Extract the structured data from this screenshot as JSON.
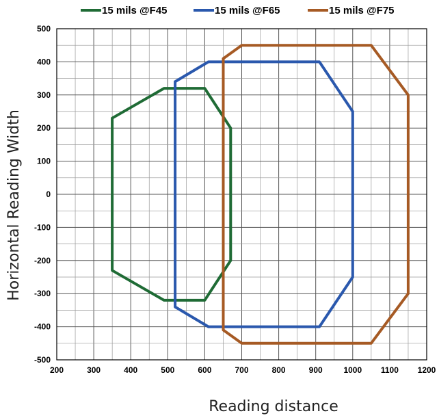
{
  "chart_data": {
    "type": "line",
    "title": "",
    "xlabel": "Reading distance",
    "ylabel": "Horizontal Reading Width",
    "xlim": [
      200,
      1200
    ],
    "ylim": [
      -500,
      500
    ],
    "x_ticks": [
      200,
      300,
      400,
      500,
      600,
      700,
      800,
      900,
      1000,
      1100,
      1200
    ],
    "y_ticks": [
      500,
      400,
      300,
      200,
      100,
      0,
      -100,
      -200,
      -300,
      -400,
      -500
    ],
    "grid": true,
    "legend_position": "top",
    "series": [
      {
        "name": "15 mils @F45",
        "color": "#1f6b35",
        "points": [
          [
            350,
            230
          ],
          [
            490,
            320
          ],
          [
            600,
            320
          ],
          [
            670,
            200
          ],
          [
            670,
            -200
          ],
          [
            600,
            -320
          ],
          [
            490,
            -320
          ],
          [
            350,
            -230
          ],
          [
            350,
            230
          ]
        ]
      },
      {
        "name": "15 mils @F65",
        "color": "#2a58ad",
        "points": [
          [
            520,
            340
          ],
          [
            610,
            400
          ],
          [
            910,
            400
          ],
          [
            1000,
            250
          ],
          [
            1000,
            -250
          ],
          [
            910,
            -400
          ],
          [
            610,
            -400
          ],
          [
            520,
            -340
          ],
          [
            520,
            340
          ]
        ]
      },
      {
        "name": "15 mils @F75",
        "color": "#a65a24",
        "points": [
          [
            650,
            410
          ],
          [
            700,
            450
          ],
          [
            1050,
            450
          ],
          [
            1150,
            300
          ],
          [
            1150,
            -300
          ],
          [
            1050,
            -450
          ],
          [
            700,
            -450
          ],
          [
            650,
            -410
          ],
          [
            650,
            410
          ]
        ]
      }
    ]
  }
}
